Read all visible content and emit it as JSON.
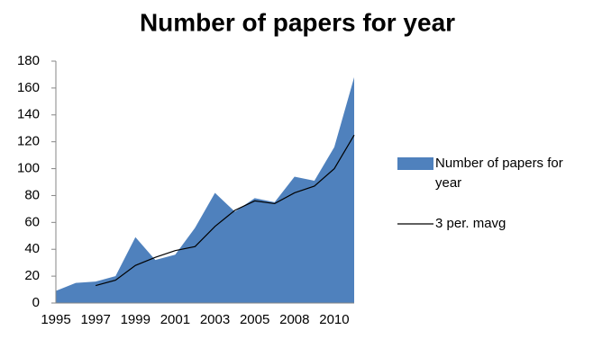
{
  "chart_data": {
    "type": "area",
    "title": "Number of papers for year",
    "categories": [
      "1995",
      null,
      "1997",
      null,
      "1999",
      null,
      "2001",
      null,
      "2003",
      null,
      "2005",
      null,
      "2008",
      null,
      "2010",
      null
    ],
    "series": [
      {
        "name": "Number of papers for year",
        "type": "area",
        "color": "#4f81bd",
        "values": [
          9,
          15,
          16,
          20,
          49,
          32,
          36,
          56,
          82,
          68,
          78,
          75,
          94,
          91,
          116,
          168
        ]
      },
      {
        "name": "3 per. mavg",
        "type": "line",
        "color": "#000000",
        "values": [
          null,
          null,
          13,
          17,
          28,
          34,
          39,
          42,
          57,
          69,
          76,
          74,
          82,
          87,
          100,
          125
        ]
      }
    ],
    "ylim": [
      0,
      180
    ],
    "yticks": [
      0,
      20,
      40,
      60,
      80,
      100,
      120,
      140,
      160,
      180
    ],
    "grid": false,
    "legend": "right"
  }
}
